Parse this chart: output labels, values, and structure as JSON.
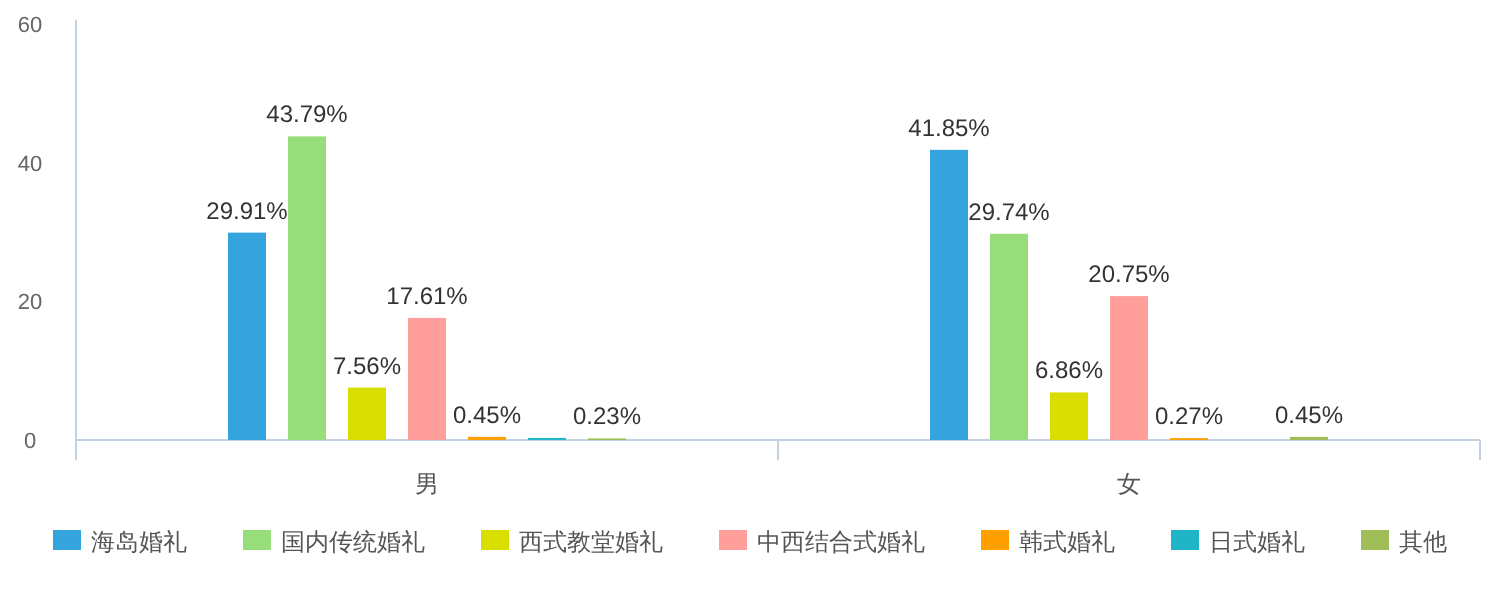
{
  "chart_data": {
    "type": "bar",
    "categories": [
      "男",
      "女"
    ],
    "ylim": [
      0,
      60
    ],
    "yticks": [
      0,
      20,
      40,
      60
    ],
    "grid": false,
    "legend": "bottom",
    "series": [
      {
        "name": "海岛婚礼",
        "color": "#35a3dc",
        "values": [
          29.91,
          41.85
        ],
        "value_labels": [
          "29.91%",
          "41.85%"
        ]
      },
      {
        "name": "国内传统婚礼",
        "color": "#97dd7a",
        "values": [
          43.79,
          29.74
        ],
        "value_labels": [
          "43.79%",
          "29.74%"
        ]
      },
      {
        "name": "西式教堂婚礼",
        "color": "#d9dd00",
        "values": [
          7.56,
          6.86
        ],
        "value_labels": [
          "7.56%",
          "6.86%"
        ]
      },
      {
        "name": "中西结合式婚礼",
        "color": "#ff9e9b",
        "values": [
          17.61,
          20.75
        ],
        "value_labels": [
          "17.61%",
          "20.75%"
        ]
      },
      {
        "name": "韩式婚礼",
        "color": "#ff9f00",
        "values": [
          0.45,
          0.27
        ],
        "value_labels": [
          "0.45%",
          "0.27%"
        ]
      },
      {
        "name": "日式婚礼",
        "color": "#20b5c6",
        "values": [
          0.3,
          null
        ],
        "value_labels": [
          null,
          null
        ]
      },
      {
        "name": "其他",
        "color": "#9fbe58",
        "values": [
          0.23,
          0.45
        ],
        "value_labels": [
          "0.23%",
          "0.45%"
        ]
      }
    ]
  }
}
